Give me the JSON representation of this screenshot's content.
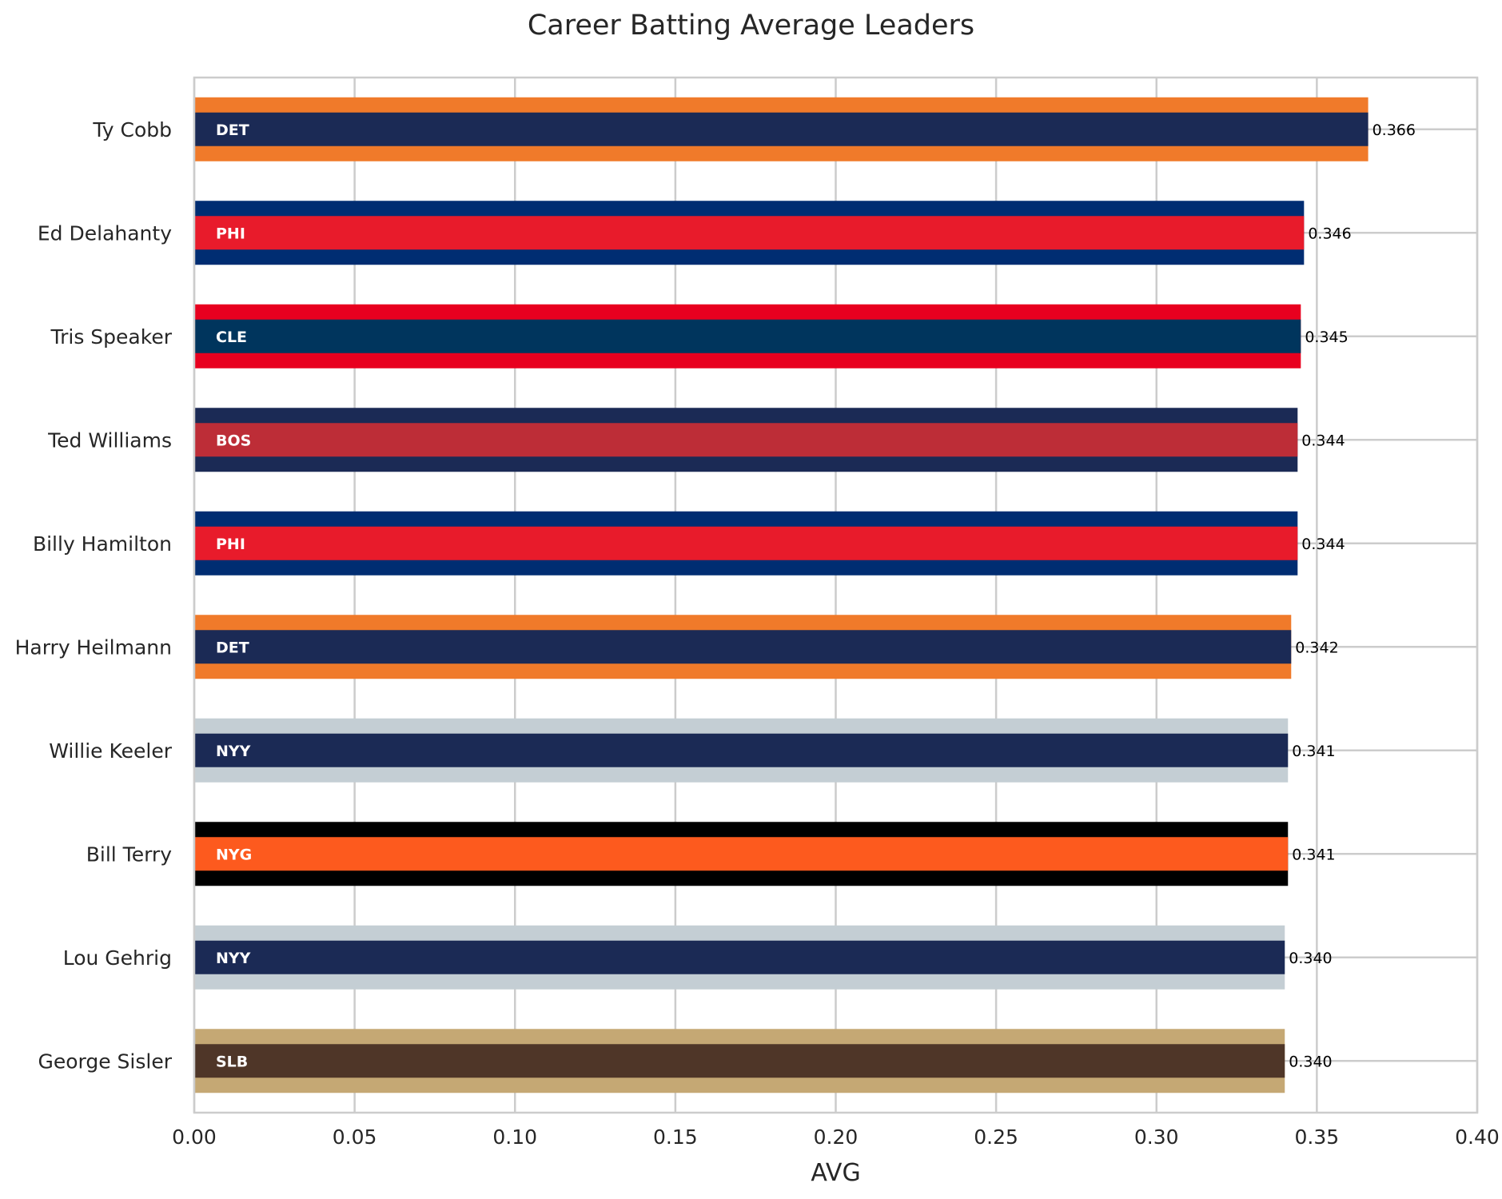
{
  "chart_data": {
    "type": "bar",
    "orientation": "horizontal",
    "title": "Career Batting Average Leaders",
    "xlabel": "AVG",
    "ylabel": "",
    "xlim": [
      0,
      0.4
    ],
    "xticks": [
      "0.00",
      "0.05",
      "0.10",
      "0.15",
      "0.20",
      "0.25",
      "0.30",
      "0.35",
      "0.40"
    ],
    "grid": true,
    "players": [
      {
        "name": "Ty Cobb",
        "team": "DET",
        "avg": 0.366,
        "label": "0.366",
        "primary_color": "#1b2a55",
        "secondary_color": "#f07a2a"
      },
      {
        "name": "Ed Delahanty",
        "team": "PHI",
        "avg": 0.346,
        "label": "0.346",
        "primary_color": "#e81b2b",
        "secondary_color": "#002d72"
      },
      {
        "name": "Tris Speaker",
        "team": "CLE",
        "avg": 0.345,
        "label": "0.345",
        "primary_color": "#00355d",
        "secondary_color": "#e8001f"
      },
      {
        "name": "Ted Williams",
        "team": "BOS",
        "avg": 0.344,
        "label": "0.344",
        "primary_color": "#bd2d37",
        "secondary_color": "#1b2a55"
      },
      {
        "name": "Billy Hamilton",
        "team": "PHI",
        "avg": 0.344,
        "label": "0.344",
        "primary_color": "#e81b2b",
        "secondary_color": "#002d72"
      },
      {
        "name": "Harry Heilmann",
        "team": "DET",
        "avg": 0.342,
        "label": "0.342",
        "primary_color": "#1b2a55",
        "secondary_color": "#f07a2a"
      },
      {
        "name": "Willie Keeler",
        "team": "NYY",
        "avg": 0.341,
        "label": "0.341",
        "primary_color": "#1b2a55",
        "secondary_color": "#c4ced4"
      },
      {
        "name": "Bill Terry",
        "team": "NYG",
        "avg": 0.341,
        "label": "0.341",
        "primary_color": "#fd5a1e",
        "secondary_color": "#000000"
      },
      {
        "name": "Lou Gehrig",
        "team": "NYY",
        "avg": 0.34,
        "label": "0.340",
        "primary_color": "#1b2a55",
        "secondary_color": "#c4ced4"
      },
      {
        "name": "George Sisler",
        "team": "SLB",
        "avg": 0.34,
        "label": "0.340",
        "primary_color": "#4f3628",
        "secondary_color": "#c5a874"
      }
    ]
  }
}
